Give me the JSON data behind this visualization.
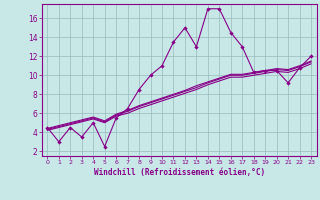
{
  "xlabel": "Windchill (Refroidissement éolien,°C)",
  "xlim": [
    -0.5,
    23.5
  ],
  "ylim": [
    1.5,
    17.5
  ],
  "xticks": [
    0,
    1,
    2,
    3,
    4,
    5,
    6,
    7,
    8,
    9,
    10,
    11,
    12,
    13,
    14,
    15,
    16,
    17,
    18,
    19,
    20,
    21,
    22,
    23
  ],
  "yticks": [
    2,
    4,
    6,
    8,
    10,
    12,
    14,
    16
  ],
  "bg_color": "#c8e8e8",
  "line_color": "#880088",
  "grid_color": "#99bbbb",
  "jagged": [
    4.5,
    3.0,
    4.5,
    3.5,
    5.0,
    2.5,
    5.5,
    6.5,
    8.5,
    10.0,
    11.0,
    13.5,
    15.0,
    13.0,
    17.0,
    17.0,
    14.5,
    13.0,
    10.3,
    10.5,
    10.5,
    9.2,
    10.8,
    12.0
  ],
  "smooth1": [
    4.2,
    4.5,
    4.8,
    5.1,
    5.4,
    5.0,
    5.7,
    6.0,
    6.5,
    6.9,
    7.3,
    7.7,
    8.1,
    8.5,
    9.0,
    9.4,
    9.8,
    9.8,
    10.0,
    10.2,
    10.4,
    10.3,
    10.7,
    11.2
  ],
  "smooth2": [
    4.3,
    4.6,
    4.9,
    5.2,
    5.5,
    5.1,
    5.8,
    6.2,
    6.7,
    7.1,
    7.5,
    7.9,
    8.3,
    8.7,
    9.2,
    9.6,
    10.0,
    10.0,
    10.2,
    10.4,
    10.6,
    10.5,
    10.9,
    11.4
  ],
  "smooth3": [
    4.4,
    4.7,
    5.0,
    5.3,
    5.6,
    5.2,
    5.9,
    6.3,
    6.8,
    7.2,
    7.6,
    8.0,
    8.4,
    8.9,
    9.3,
    9.7,
    10.1,
    10.1,
    10.3,
    10.5,
    10.7,
    10.6,
    11.0,
    11.5
  ]
}
